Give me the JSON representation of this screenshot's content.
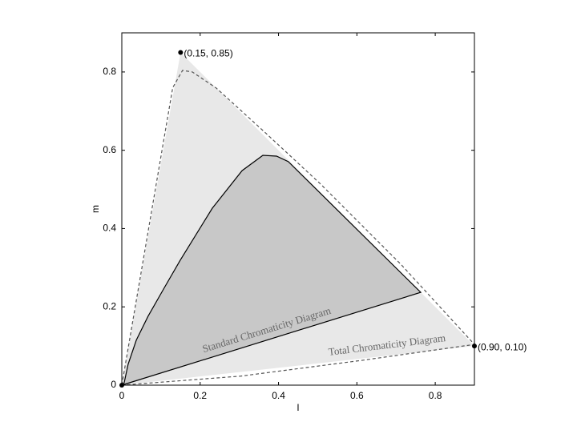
{
  "chart_data": {
    "type": "area",
    "xlabel": "l",
    "ylabel": "m",
    "xlim": [
      0,
      0.9
    ],
    "ylim": [
      0,
      0.9
    ],
    "xticks": [
      0,
      0.2,
      0.4,
      0.6,
      0.8
    ],
    "yticks": [
      0,
      0.2,
      0.4,
      0.6,
      0.8
    ],
    "series": [
      {
        "name": "Total Chromaticity Diagram",
        "fill": "#e8e8e8",
        "stroke": "none",
        "dashed": false,
        "x": [
          0,
          0.15,
          0.9
        ],
        "y": [
          0,
          0.85,
          0.1
        ]
      },
      {
        "fill": "none",
        "stroke": "#555555",
        "dashed": true,
        "x": [
          0,
          0.13,
          0.155,
          0.18,
          0.241,
          0.364,
          0.507,
          0.712,
          0.9,
          0.61,
          0.303,
          0
        ],
        "y": [
          0,
          0.76,
          0.804,
          0.8,
          0.759,
          0.647,
          0.514,
          0.309,
          0.104,
          0.063,
          0.023,
          0
        ]
      },
      {
        "name": "Standard Chromaticity Diagram",
        "fill": "#c8c8c8",
        "stroke": "#000000",
        "dashed": false,
        "x": [
          0,
          0.006,
          0.016,
          0.037,
          0.067,
          0.108,
          0.149,
          0.231,
          0.307,
          0.36,
          0.395,
          0.425,
          0.763
        ],
        "y": [
          0,
          0.006,
          0.053,
          0.115,
          0.176,
          0.248,
          0.319,
          0.452,
          0.548,
          0.587,
          0.585,
          0.571,
          0.237
        ]
      }
    ],
    "points": {
      "color": "#000000",
      "x": [
        0.15,
        0.9,
        0
      ],
      "y": [
        0.85,
        0.1,
        0
      ],
      "labels": [
        "(0.15, 0.85)",
        "(0.90, 0.10)",
        null
      ]
    }
  }
}
